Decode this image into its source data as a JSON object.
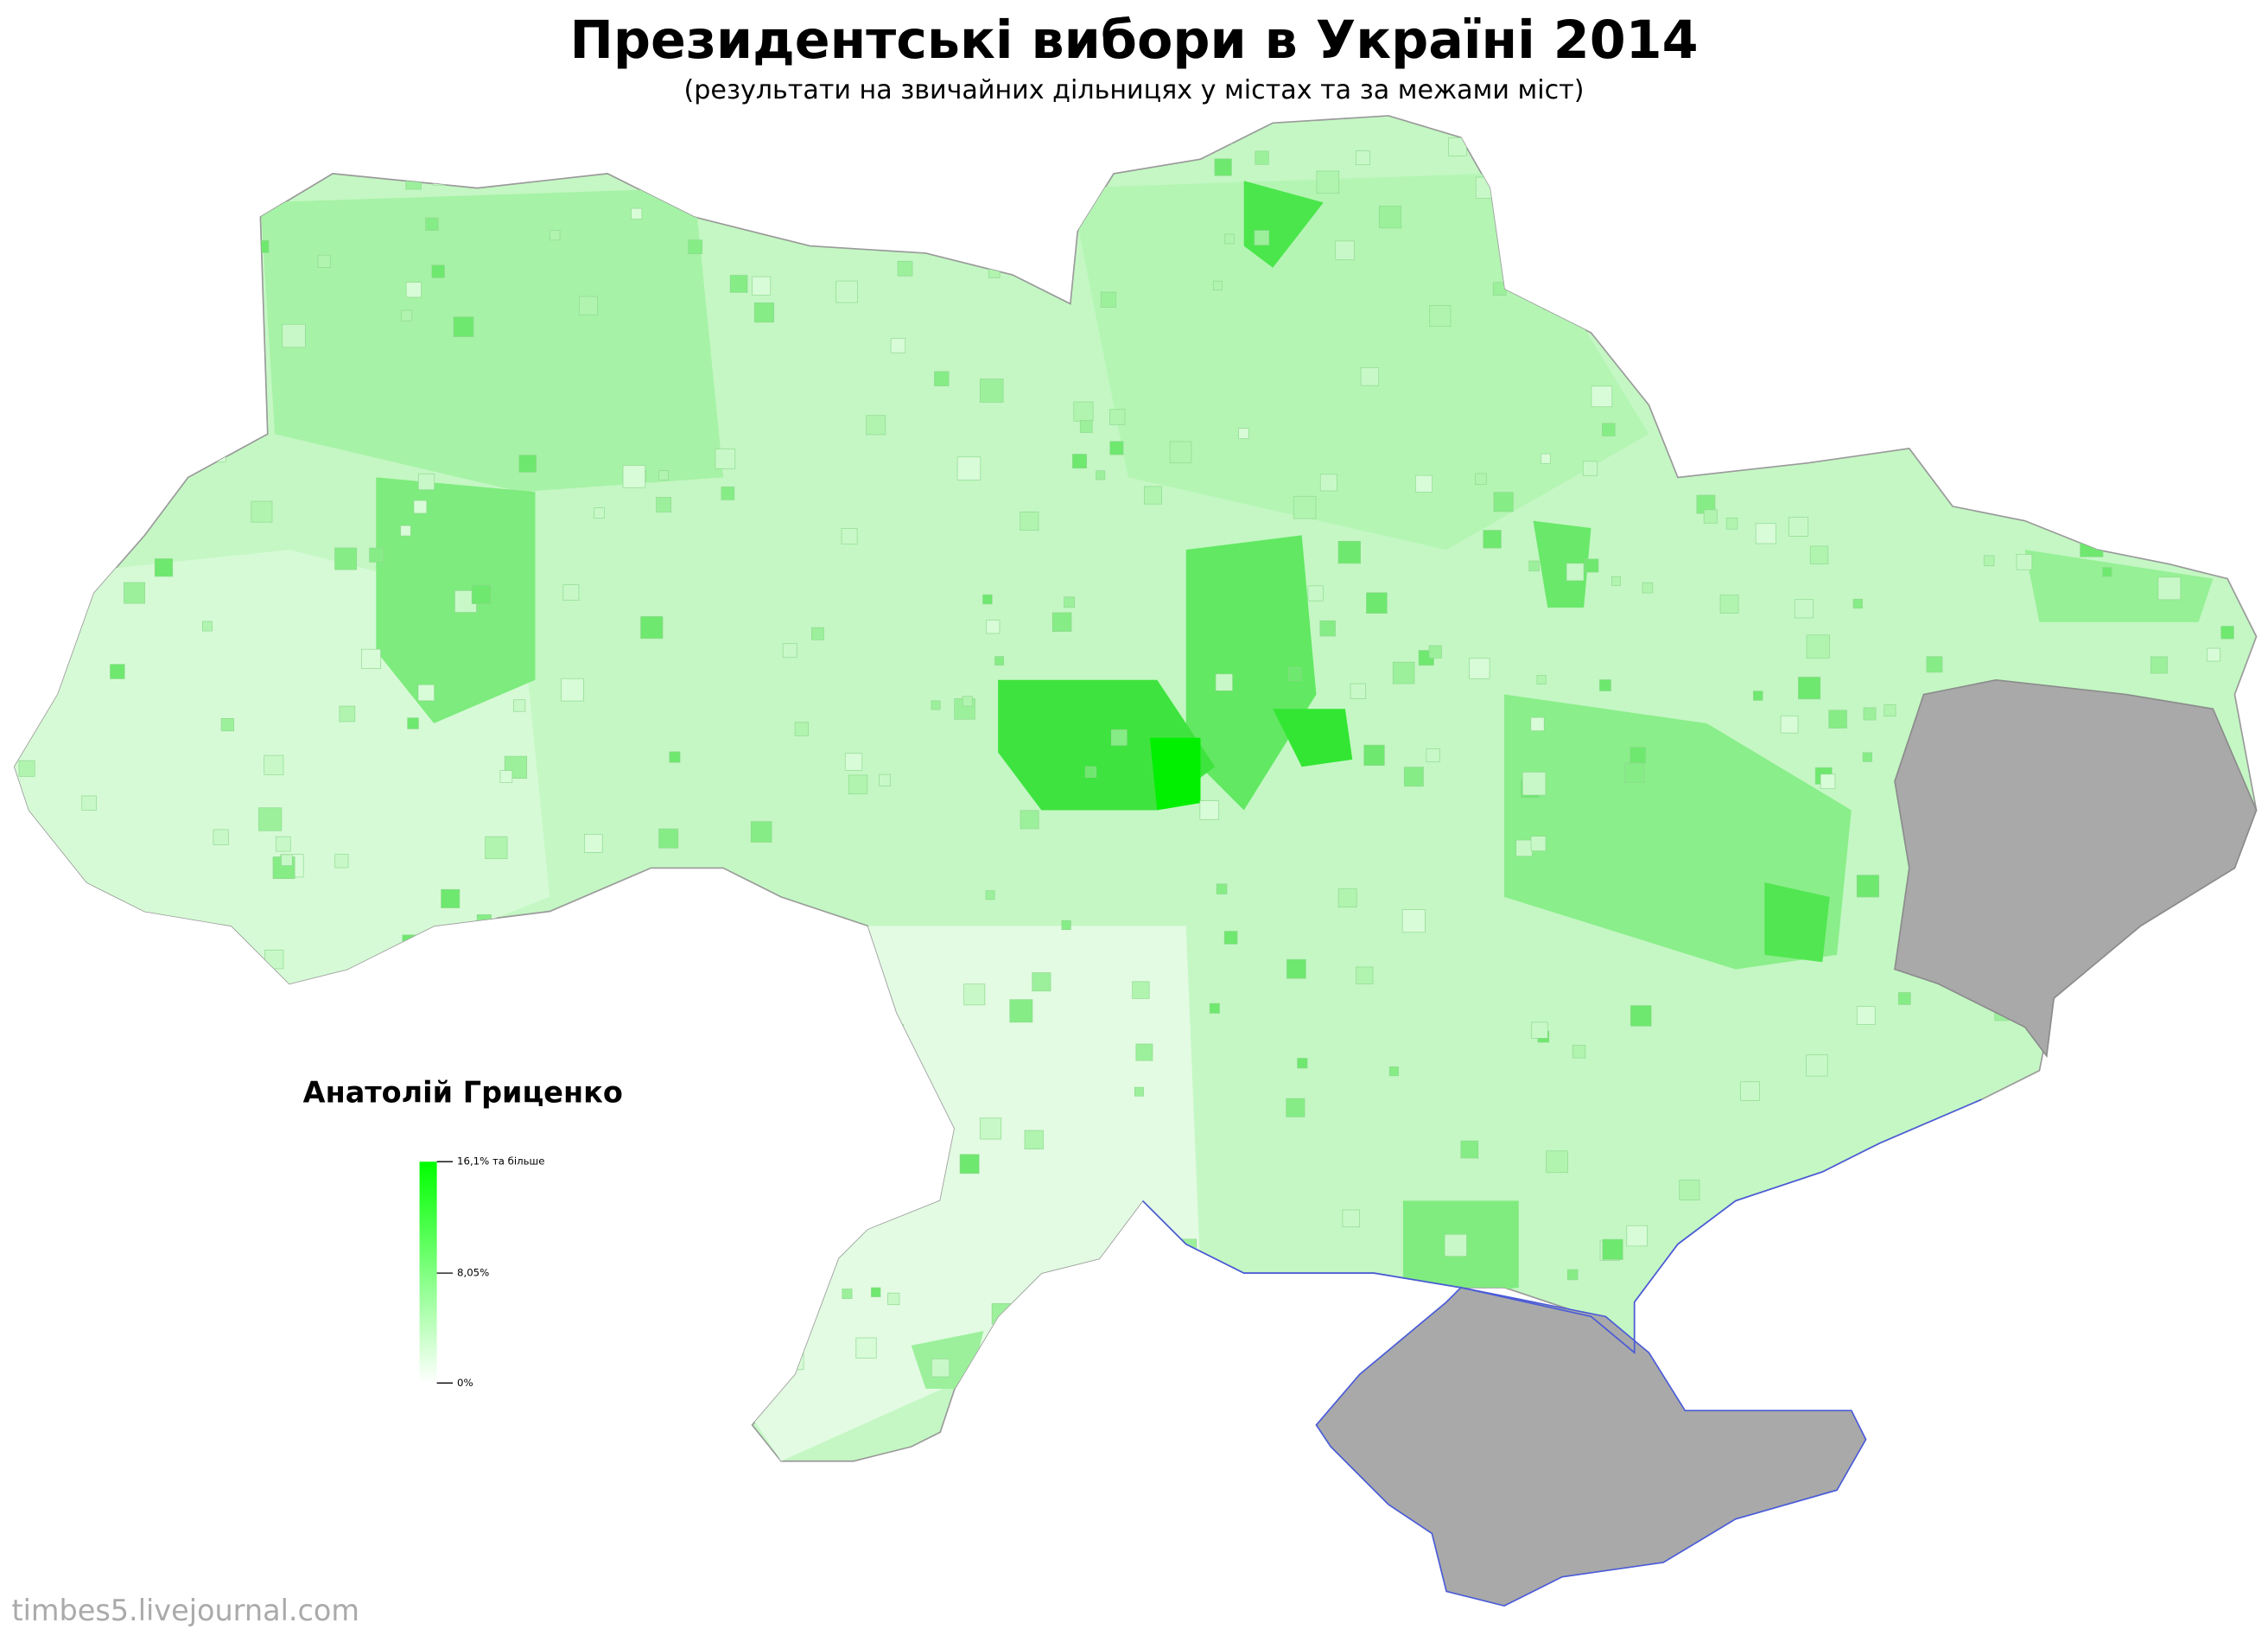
{
  "header": {
    "title": "Президентські вибори в Україні 2014",
    "subtitle": "(результати на звичайних дільницях у містах та за межами міст)"
  },
  "legend": {
    "title": "Анатолій Гриценко",
    "labels": [
      "16,1% та більше",
      "8,05%",
      "0%"
    ]
  },
  "footer": {
    "watermark": "timbes5.livejournal.com"
  }
}
